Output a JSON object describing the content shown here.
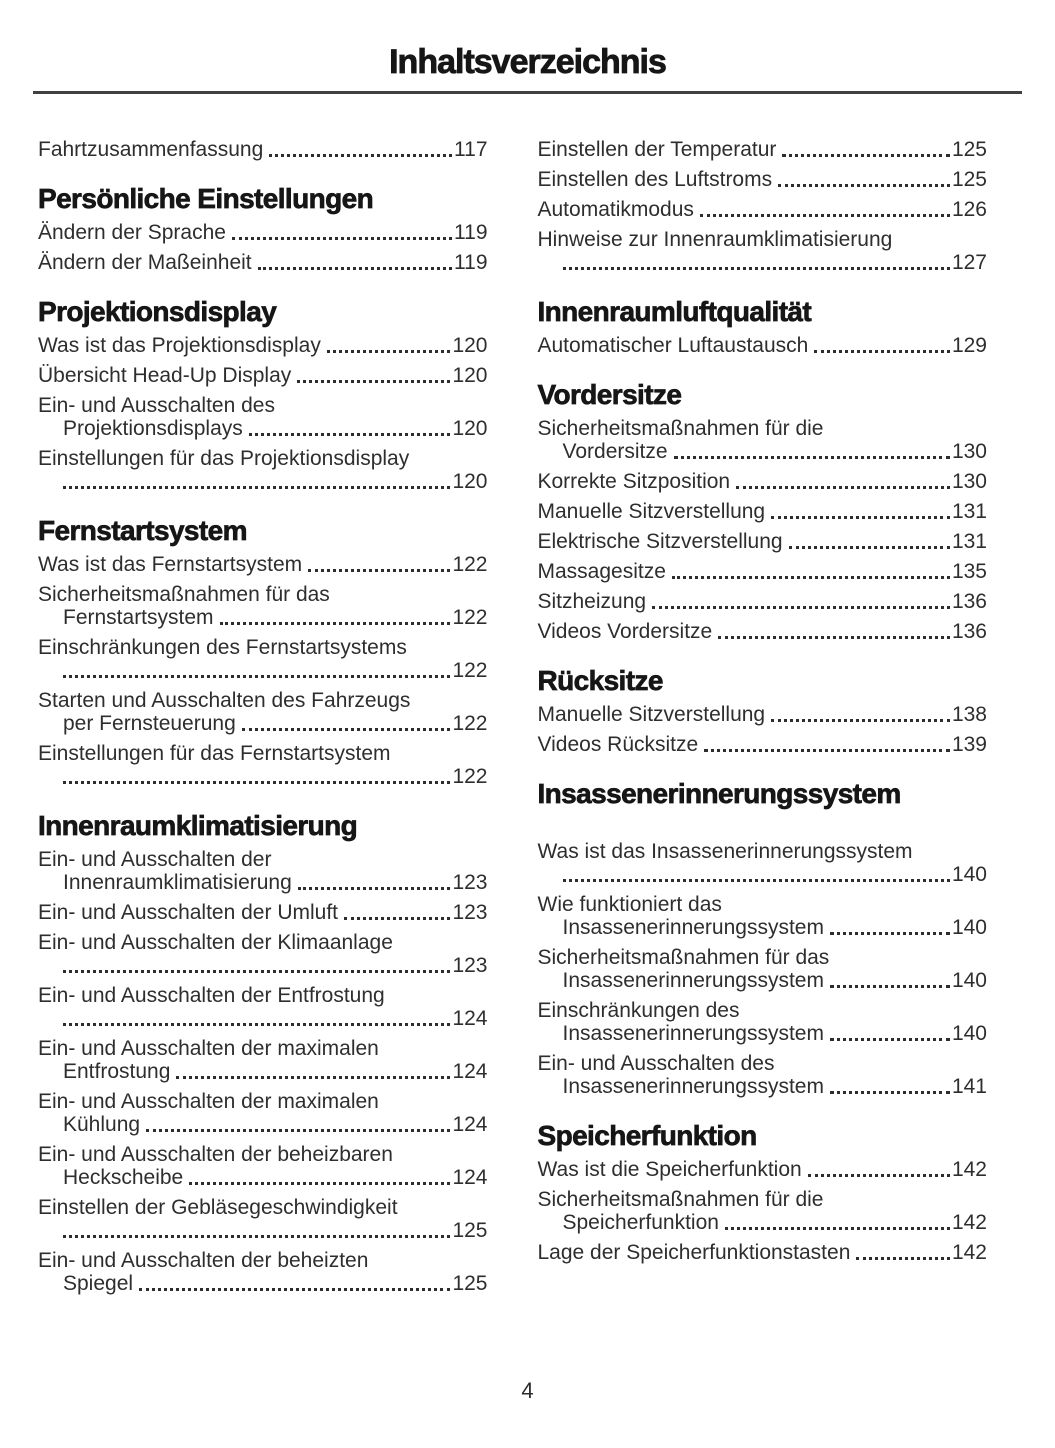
{
  "page": {
    "title": "Inhaltsverzeichnis",
    "number": "4"
  },
  "columns": [
    {
      "blocks": [
        {
          "type": "entry",
          "text": "Fahrtzusammenfassung",
          "page": "117"
        },
        {
          "type": "heading",
          "text": "Persönliche Einstellungen"
        },
        {
          "type": "entry",
          "text": "Ändern der Sprache",
          "page": "119"
        },
        {
          "type": "entry",
          "text": "Ändern der Maßeinheit",
          "page": "119"
        },
        {
          "type": "heading",
          "text": "Projektionsdisplay"
        },
        {
          "type": "entry",
          "text": "Was ist das Projektionsdisplay",
          "page": "120"
        },
        {
          "type": "entry",
          "text": "Übersicht Head-Up Display",
          "page": "120"
        },
        {
          "type": "entry",
          "pre": [
            "Ein- und Ausschalten des"
          ],
          "text": "Projektionsdisplays",
          "page": "120"
        },
        {
          "type": "entry",
          "pre": [
            "Einstellungen für das Projektionsdisplay"
          ],
          "text": "",
          "page": "120"
        },
        {
          "type": "heading",
          "text": "Fernstartsystem"
        },
        {
          "type": "entry",
          "text": "Was ist das Fernstartsystem",
          "page": "122"
        },
        {
          "type": "entry",
          "pre": [
            "Sicherheitsmaßnahmen für das"
          ],
          "text": "Fernstartsystem",
          "page": "122"
        },
        {
          "type": "entry",
          "pre": [
            "Einschränkungen des Fernstartsystems"
          ],
          "text": "",
          "page": "122"
        },
        {
          "type": "entry",
          "pre": [
            "Starten und Ausschalten des Fahrzeugs"
          ],
          "text": "per Fernsteuerung",
          "page": "122"
        },
        {
          "type": "entry",
          "pre": [
            "Einstellungen für das Fernstartsystem"
          ],
          "text": "",
          "page": "122"
        },
        {
          "type": "heading",
          "text": "Innenraumklimatisierung"
        },
        {
          "type": "entry",
          "pre": [
            "Ein- und Ausschalten der"
          ],
          "text": "Innenraumklimatisierung",
          "page": "123"
        },
        {
          "type": "entry",
          "text": "Ein- und Ausschalten der Umluft",
          "page": "123"
        },
        {
          "type": "entry",
          "pre": [
            "Ein- und Ausschalten der Klimaanlage"
          ],
          "text": "",
          "page": "123"
        },
        {
          "type": "entry",
          "pre": [
            "Ein- und Ausschalten der Entfrostung"
          ],
          "text": "",
          "page": "124"
        },
        {
          "type": "entry",
          "pre": [
            "Ein- und Ausschalten der maximalen"
          ],
          "text": "Entfrostung",
          "page": "124"
        },
        {
          "type": "entry",
          "pre": [
            "Ein- und Ausschalten der maximalen"
          ],
          "text": "Kühlung",
          "page": "124"
        },
        {
          "type": "entry",
          "pre": [
            "Ein- und Ausschalten der beheizbaren"
          ],
          "text": "Heckscheibe",
          "page": "124"
        },
        {
          "type": "entry",
          "pre": [
            "Einstellen der Gebläsegeschwindigkeit"
          ],
          "text": "",
          "page": "125"
        },
        {
          "type": "entry",
          "pre": [
            "Ein- und Ausschalten der beheizten"
          ],
          "text": "Spiegel",
          "page": "125"
        }
      ]
    },
    {
      "blocks": [
        {
          "type": "entry",
          "text": "Einstellen der Temperatur",
          "page": "125"
        },
        {
          "type": "entry",
          "text": "Einstellen des Luftstroms",
          "page": "125"
        },
        {
          "type": "entry",
          "text": "Automatikmodus",
          "page": "126"
        },
        {
          "type": "entry",
          "pre": [
            "Hinweise zur Innenraumklimatisierung"
          ],
          "text": "",
          "page": "127"
        },
        {
          "type": "heading",
          "text": "Innenraumluftqualität"
        },
        {
          "type": "entry",
          "text": "Automatischer Luftaustausch",
          "page": "129"
        },
        {
          "type": "heading",
          "text": "Vordersitze"
        },
        {
          "type": "entry",
          "pre": [
            "Sicherheitsmaßnahmen für die"
          ],
          "text": "Vordersitze",
          "page": "130"
        },
        {
          "type": "entry",
          "text": "Korrekte Sitzposition",
          "page": "130"
        },
        {
          "type": "entry",
          "text": "Manuelle Sitzverstellung",
          "page": "131"
        },
        {
          "type": "entry",
          "text": "Elektrische Sitzverstellung",
          "page": "131"
        },
        {
          "type": "entry",
          "text": "Massagesitze",
          "page": "135"
        },
        {
          "type": "entry",
          "text": "Sitzheizung",
          "page": "136"
        },
        {
          "type": "entry",
          "text": "Videos Vordersitze",
          "page": "136"
        },
        {
          "type": "heading",
          "text": "Rücksitze"
        },
        {
          "type": "entry",
          "text": "Manuelle Sitzverstellung",
          "page": "138"
        },
        {
          "type": "entry",
          "text": "Videos Rücksitze",
          "page": "139"
        },
        {
          "type": "heading",
          "text": "Insassenerinnerungssystem"
        },
        {
          "type": "entry",
          "extra_gap": true,
          "pre": [
            "Was ist das Insassenerinnerungssystem"
          ],
          "text": "",
          "page": "140"
        },
        {
          "type": "entry",
          "pre": [
            "Wie funktioniert das"
          ],
          "text": "Insassenerinnerungssystem",
          "page": "140"
        },
        {
          "type": "entry",
          "pre": [
            "Sicherheitsmaßnahmen für das"
          ],
          "text": "Insassenerinnerungssystem",
          "page": "140"
        },
        {
          "type": "entry",
          "pre": [
            "Einschränkungen des"
          ],
          "text": "Insassenerinnerungssystem",
          "page": "140"
        },
        {
          "type": "entry",
          "pre": [
            "Ein- und Ausschalten des"
          ],
          "text": "Insassenerinnerungssystem",
          "page": "141"
        },
        {
          "type": "heading",
          "text": "Speicherfunktion"
        },
        {
          "type": "entry",
          "text": "Was ist die Speicherfunktion",
          "page": "142"
        },
        {
          "type": "entry",
          "pre": [
            "Sicherheitsmaßnahmen für die"
          ],
          "text": "Speicherfunktion",
          "page": "142"
        },
        {
          "type": "entry",
          "text": "Lage der Speicherfunktionstasten",
          "page": "142"
        }
      ]
    }
  ]
}
